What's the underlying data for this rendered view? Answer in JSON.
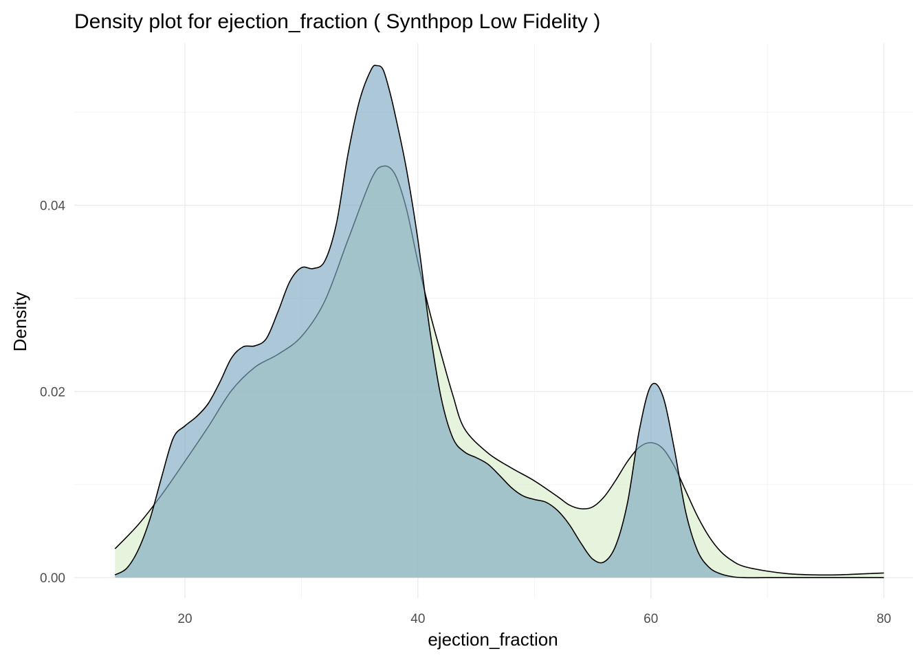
{
  "chart_data": {
    "type": "area",
    "title": "Density plot for ejection_fraction ( Synthpop Low Fidelity )",
    "xlabel": "ejection_fraction",
    "ylabel": "Density",
    "xlim": [
      10.5,
      82.5
    ],
    "ylim": [
      -0.0022,
      0.0574
    ],
    "x_ticks": [
      20,
      40,
      60,
      80
    ],
    "x_tick_labels": [
      "20",
      "40",
      "60",
      "80"
    ],
    "x_minor_ticks": [
      30,
      50,
      70
    ],
    "y_ticks": [
      0.0,
      0.02,
      0.04
    ],
    "y_tick_labels": [
      "0.00",
      "0.02",
      "0.04"
    ],
    "y_minor_ticks": [
      0.01,
      0.03,
      0.05
    ],
    "grid": true,
    "legend": "none",
    "series": [
      {
        "fill": "#d9eccb",
        "x": [
          14,
          16,
          18,
          20,
          22,
          24,
          26,
          28,
          30,
          32,
          34,
          36,
          37,
          38,
          39,
          40,
          41,
          42,
          43,
          44,
          46,
          48,
          50,
          52,
          53,
          54,
          55,
          56,
          57,
          58,
          59,
          60,
          61,
          62,
          63,
          64,
          65,
          66,
          67,
          68,
          70,
          72,
          74,
          76,
          78,
          80
        ],
        "y": [
          0.0031,
          0.0057,
          0.0089,
          0.0125,
          0.0162,
          0.0201,
          0.0226,
          0.024,
          0.0259,
          0.0297,
          0.0363,
          0.0428,
          0.0442,
          0.0434,
          0.0397,
          0.0339,
          0.0286,
          0.024,
          0.0196,
          0.016,
          0.0134,
          0.0118,
          0.0104,
          0.0087,
          0.0078,
          0.0074,
          0.0076,
          0.0087,
          0.0105,
          0.0125,
          0.014,
          0.0145,
          0.0139,
          0.012,
          0.0093,
          0.0066,
          0.0044,
          0.0028,
          0.0018,
          0.0012,
          0.0007,
          0.0004,
          0.0003,
          0.0003,
          0.0004,
          0.0005
        ]
      },
      {
        "fill": "#7fa9c1",
        "x": [
          14,
          15,
          16,
          17,
          18,
          19,
          20,
          21,
          22,
          23,
          24,
          25,
          26,
          27,
          28,
          29,
          30,
          31,
          32,
          33,
          34,
          35,
          36,
          36.5,
          37,
          37.5,
          38,
          39,
          40,
          41,
          42,
          43,
          44,
          45,
          46,
          47,
          48,
          49,
          50,
          51,
          52,
          53,
          54,
          55,
          56,
          57,
          58,
          59,
          60,
          61,
          62,
          63,
          64,
          65,
          66,
          67,
          68,
          70,
          75,
          80
        ],
        "y": [
          0.0003,
          0.001,
          0.003,
          0.0063,
          0.0108,
          0.015,
          0.0163,
          0.0173,
          0.0187,
          0.021,
          0.0236,
          0.0248,
          0.0249,
          0.0257,
          0.0286,
          0.0318,
          0.0333,
          0.0332,
          0.034,
          0.038,
          0.0455,
          0.0513,
          0.0546,
          0.055,
          0.0546,
          0.0526,
          0.05,
          0.044,
          0.0363,
          0.0268,
          0.0193,
          0.015,
          0.0135,
          0.0129,
          0.0122,
          0.011,
          0.0097,
          0.0088,
          0.0084,
          0.0081,
          0.0072,
          0.0057,
          0.0037,
          0.002,
          0.0017,
          0.0035,
          0.0081,
          0.0158,
          0.0206,
          0.0196,
          0.0139,
          0.007,
          0.0029,
          0.0011,
          0.0004,
          0.0001,
          0.0,
          0.0,
          0.0,
          0.0
        ]
      }
    ]
  },
  "colors": {
    "background": "#ffffff",
    "grid_major": "#ebebeb",
    "grid_minor": "#f2f2f2",
    "outline": "#000000",
    "tick_text": "#4d4d4d",
    "overlap_fill_visible": "#94b9b9"
  }
}
